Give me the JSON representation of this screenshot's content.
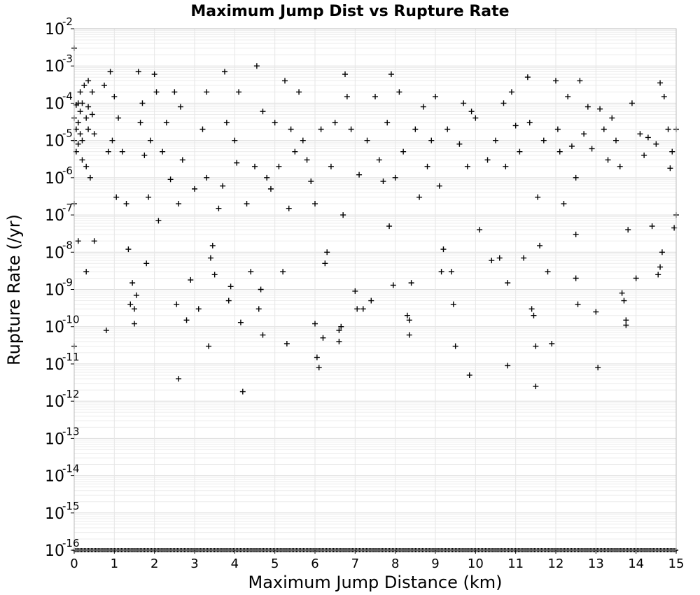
{
  "chart_data": {
    "type": "scatter",
    "title": "Maximum Jump Dist vs Rupture Rate",
    "xlabel": "Maximum Jump Distance (km)",
    "ylabel": "Rupture Rate (/yr)",
    "xlim": [
      0,
      15
    ],
    "ylim": [
      1e-16,
      0.01
    ],
    "y_scale": "log",
    "grid": true,
    "marker": "plus",
    "marker_color": "#000000",
    "x_ticks": [
      "0",
      "1",
      "2",
      "3",
      "4",
      "5",
      "6",
      "7",
      "8",
      "9",
      "10",
      "11",
      "12",
      "13",
      "14",
      "15"
    ],
    "y_ticks": [
      {
        "base": "10",
        "exp": "-2"
      },
      {
        "base": "10",
        "exp": "-3"
      },
      {
        "base": "10",
        "exp": "-4"
      },
      {
        "base": "10",
        "exp": "-5"
      },
      {
        "base": "10",
        "exp": "-6"
      },
      {
        "base": "10",
        "exp": "-7"
      },
      {
        "base": "10",
        "exp": "-8"
      },
      {
        "base": "10",
        "exp": "-9"
      },
      {
        "base": "10",
        "exp": "-10"
      },
      {
        "base": "10",
        "exp": "-11"
      },
      {
        "base": "10",
        "exp": "-12"
      },
      {
        "base": "10",
        "exp": "-13"
      },
      {
        "base": "10",
        "exp": "-14"
      },
      {
        "base": "10",
        "exp": "-15"
      },
      {
        "base": "10",
        "exp": "-16"
      }
    ],
    "series": [
      {
        "points": [
          [
            0.0,
            0.003
          ],
          [
            0.0,
            4e-05
          ],
          [
            0.0,
            1e-05
          ],
          [
            0.0,
            2e-07
          ],
          [
            0.0,
            3e-11
          ],
          [
            0.05,
            9e-05
          ],
          [
            0.05,
            2e-05
          ],
          [
            0.05,
            5e-06
          ],
          [
            0.1,
            0.0001
          ],
          [
            0.1,
            3e-05
          ],
          [
            0.1,
            8e-06
          ],
          [
            0.15,
            0.0002
          ],
          [
            0.15,
            6e-05
          ],
          [
            0.15,
            1.5e-05
          ],
          [
            0.2,
            0.0001
          ],
          [
            0.2,
            1e-05
          ],
          [
            0.2,
            3e-06
          ],
          [
            0.25,
            0.0003
          ],
          [
            0.3,
            4e-05
          ],
          [
            0.3,
            2e-06
          ],
          [
            0.35,
            0.0004
          ],
          [
            0.35,
            8e-05
          ],
          [
            0.35,
            2e-05
          ],
          [
            0.4,
            1e-06
          ],
          [
            0.45,
            0.0002
          ],
          [
            0.45,
            5e-05
          ],
          [
            0.5,
            2e-08
          ],
          [
            0.5,
            1.5e-05
          ],
          [
            0.3,
            3e-09
          ],
          [
            0.1,
            2e-08
          ],
          [
            0.75,
            0.0003
          ],
          [
            0.8,
            8e-11
          ],
          [
            0.85,
            5e-06
          ],
          [
            0.9,
            0.0007
          ],
          [
            0.95,
            1e-05
          ],
          [
            1.0,
            0.00015
          ],
          [
            1.05,
            3e-07
          ],
          [
            1.1,
            4e-05
          ],
          [
            1.2,
            5e-06
          ],
          [
            1.3,
            2e-07
          ],
          [
            1.35,
            1.2e-08
          ],
          [
            1.4,
            4e-10
          ],
          [
            1.45,
            1.5e-09
          ],
          [
            1.5,
            3e-10
          ],
          [
            1.5,
            1.2e-10
          ],
          [
            1.55,
            7e-10
          ],
          [
            1.6,
            0.0007
          ],
          [
            1.65,
            3e-05
          ],
          [
            1.7,
            0.0001
          ],
          [
            1.75,
            4e-06
          ],
          [
            1.8,
            5e-09
          ],
          [
            1.85,
            3e-07
          ],
          [
            1.9,
            1e-05
          ],
          [
            2.0,
            0.0006
          ],
          [
            2.05,
            0.0002
          ],
          [
            2.1,
            7e-08
          ],
          [
            2.2,
            5e-06
          ],
          [
            2.3,
            3e-05
          ],
          [
            2.4,
            9e-07
          ],
          [
            2.5,
            0.0002
          ],
          [
            2.55,
            4e-10
          ],
          [
            2.6,
            4e-12
          ],
          [
            2.6,
            2e-07
          ],
          [
            2.65,
            8e-05
          ],
          [
            2.7,
            3e-06
          ],
          [
            2.8,
            1.5e-10
          ],
          [
            2.9,
            1.8e-09
          ],
          [
            3.0,
            5e-07
          ],
          [
            3.1,
            3e-10
          ],
          [
            3.2,
            2e-05
          ],
          [
            3.3,
            0.0002
          ],
          [
            3.3,
            1e-06
          ],
          [
            3.35,
            3e-11
          ],
          [
            3.4,
            7e-09
          ],
          [
            3.45,
            1.5e-08
          ],
          [
            3.5,
            2.5e-09
          ],
          [
            3.6,
            1.5e-07
          ],
          [
            3.7,
            6e-07
          ],
          [
            3.75,
            0.0007
          ],
          [
            3.8,
            3e-05
          ],
          [
            3.85,
            5e-10
          ],
          [
            3.9,
            1.2e-09
          ],
          [
            4.0,
            1e-05
          ],
          [
            4.05,
            2.5e-06
          ],
          [
            4.1,
            0.0002
          ],
          [
            4.15,
            1.3e-10
          ],
          [
            4.2,
            1.8e-12
          ],
          [
            4.3,
            2e-07
          ],
          [
            4.4,
            3e-09
          ],
          [
            4.5,
            2e-06
          ],
          [
            4.55,
            0.001
          ],
          [
            4.6,
            3e-10
          ],
          [
            4.65,
            1e-09
          ],
          [
            4.7,
            6e-11
          ],
          [
            4.7,
            6e-05
          ],
          [
            4.8,
            1e-06
          ],
          [
            4.9,
            5e-07
          ],
          [
            5.0,
            3e-05
          ],
          [
            5.1,
            2e-06
          ],
          [
            5.2,
            3e-09
          ],
          [
            5.25,
            0.0004
          ],
          [
            5.3,
            3.5e-11
          ],
          [
            5.35,
            1.5e-07
          ],
          [
            5.4,
            2e-05
          ],
          [
            5.5,
            5e-06
          ],
          [
            5.6,
            0.0002
          ],
          [
            5.7,
            1e-05
          ],
          [
            5.8,
            3e-06
          ],
          [
            5.9,
            8e-07
          ],
          [
            6.0,
            2e-07
          ],
          [
            6.0,
            1.2e-10
          ],
          [
            6.05,
            1.5e-11
          ],
          [
            6.1,
            8e-12
          ],
          [
            6.15,
            2e-05
          ],
          [
            6.2,
            5e-11
          ],
          [
            6.25,
            5e-09
          ],
          [
            6.3,
            1e-08
          ],
          [
            6.4,
            2e-06
          ],
          [
            6.5,
            3e-05
          ],
          [
            6.6,
            4e-11
          ],
          [
            6.6,
            8e-11
          ],
          [
            6.65,
            1e-10
          ],
          [
            6.7,
            1e-07
          ],
          [
            6.75,
            0.0006
          ],
          [
            6.8,
            0.00015
          ],
          [
            6.9,
            2e-05
          ],
          [
            7.0,
            9e-10
          ],
          [
            7.05,
            3e-10
          ],
          [
            7.1,
            1.2e-06
          ],
          [
            7.2,
            3e-10
          ],
          [
            7.3,
            1e-05
          ],
          [
            7.4,
            5e-10
          ],
          [
            7.5,
            0.00015
          ],
          [
            7.6,
            3e-06
          ],
          [
            7.7,
            8e-07
          ],
          [
            7.8,
            3e-05
          ],
          [
            7.85,
            5e-08
          ],
          [
            7.9,
            0.0006
          ],
          [
            7.95,
            1.3e-09
          ],
          [
            8.0,
            1e-06
          ],
          [
            8.1,
            0.0002
          ],
          [
            8.2,
            5e-06
          ],
          [
            8.3,
            2e-10
          ],
          [
            8.35,
            1.5e-10
          ],
          [
            8.35,
            6e-11
          ],
          [
            8.4,
            1.5e-09
          ],
          [
            8.5,
            2e-05
          ],
          [
            8.6,
            3e-07
          ],
          [
            8.7,
            8e-05
          ],
          [
            8.8,
            2e-06
          ],
          [
            8.9,
            1e-05
          ],
          [
            9.0,
            0.00015
          ],
          [
            9.1,
            6e-07
          ],
          [
            9.15,
            3e-09
          ],
          [
            9.2,
            1.2e-08
          ],
          [
            9.3,
            2e-05
          ],
          [
            9.4,
            3e-09
          ],
          [
            9.45,
            4e-10
          ],
          [
            9.5,
            3e-11
          ],
          [
            9.6,
            8e-06
          ],
          [
            9.7,
            0.0001
          ],
          [
            9.8,
            2e-06
          ],
          [
            9.85,
            5e-12
          ],
          [
            9.9,
            6e-05
          ],
          [
            10.0,
            4e-05
          ],
          [
            10.1,
            4e-08
          ],
          [
            10.3,
            3e-06
          ],
          [
            10.4,
            6e-09
          ],
          [
            10.5,
            1e-05
          ],
          [
            10.6,
            7e-09
          ],
          [
            10.7,
            0.0001
          ],
          [
            10.75,
            2e-06
          ],
          [
            10.8,
            1.5e-09
          ],
          [
            10.8,
            9e-12
          ],
          [
            10.9,
            0.0002
          ],
          [
            11.0,
            2.5e-05
          ],
          [
            11.1,
            5e-06
          ],
          [
            11.2,
            7e-09
          ],
          [
            11.3,
            0.0005
          ],
          [
            11.35,
            3e-05
          ],
          [
            11.4,
            3e-10
          ],
          [
            11.45,
            2e-10
          ],
          [
            11.5,
            3e-11
          ],
          [
            11.5,
            2.5e-12
          ],
          [
            11.55,
            3e-07
          ],
          [
            11.6,
            1.5e-08
          ],
          [
            11.7,
            1e-05
          ],
          [
            11.8,
            3e-09
          ],
          [
            11.9,
            3.5e-11
          ],
          [
            12.0,
            0.0004
          ],
          [
            12.05,
            2e-05
          ],
          [
            12.1,
            5e-06
          ],
          [
            12.2,
            2e-07
          ],
          [
            12.3,
            0.00015
          ],
          [
            12.4,
            7e-06
          ],
          [
            12.5,
            1e-06
          ],
          [
            12.5,
            3e-08
          ],
          [
            12.5,
            2e-09
          ],
          [
            12.55,
            4e-10
          ],
          [
            12.6,
            0.0004
          ],
          [
            12.7,
            1.5e-05
          ],
          [
            12.8,
            8e-05
          ],
          [
            12.9,
            6e-06
          ],
          [
            13.0,
            2.5e-10
          ],
          [
            13.05,
            8e-12
          ],
          [
            13.1,
            7e-05
          ],
          [
            13.2,
            2e-05
          ],
          [
            13.3,
            3e-06
          ],
          [
            13.4,
            4e-05
          ],
          [
            13.5,
            1e-05
          ],
          [
            13.6,
            2e-06
          ],
          [
            13.65,
            8e-10
          ],
          [
            13.7,
            5e-10
          ],
          [
            13.75,
            1.5e-10
          ],
          [
            13.75,
            1.1e-10
          ],
          [
            13.8,
            4e-08
          ],
          [
            13.9,
            0.0001
          ],
          [
            14.0,
            2e-09
          ],
          [
            14.1,
            1.5e-05
          ],
          [
            14.2,
            4e-06
          ],
          [
            14.3,
            1.2e-05
          ],
          [
            14.4,
            5e-08
          ],
          [
            14.5,
            8e-06
          ],
          [
            14.55,
            2.5e-09
          ],
          [
            14.6,
            0.00035
          ],
          [
            14.6,
            4e-09
          ],
          [
            14.65,
            1e-08
          ],
          [
            14.7,
            0.00015
          ],
          [
            14.8,
            2e-05
          ],
          [
            14.9,
            5e-06
          ],
          [
            15.0,
            1e-07
          ],
          [
            15.0,
            2e-05
          ],
          [
            14.95,
            4.5e-08
          ],
          [
            14.85,
            1.8e-06
          ]
        ]
      }
    ]
  }
}
